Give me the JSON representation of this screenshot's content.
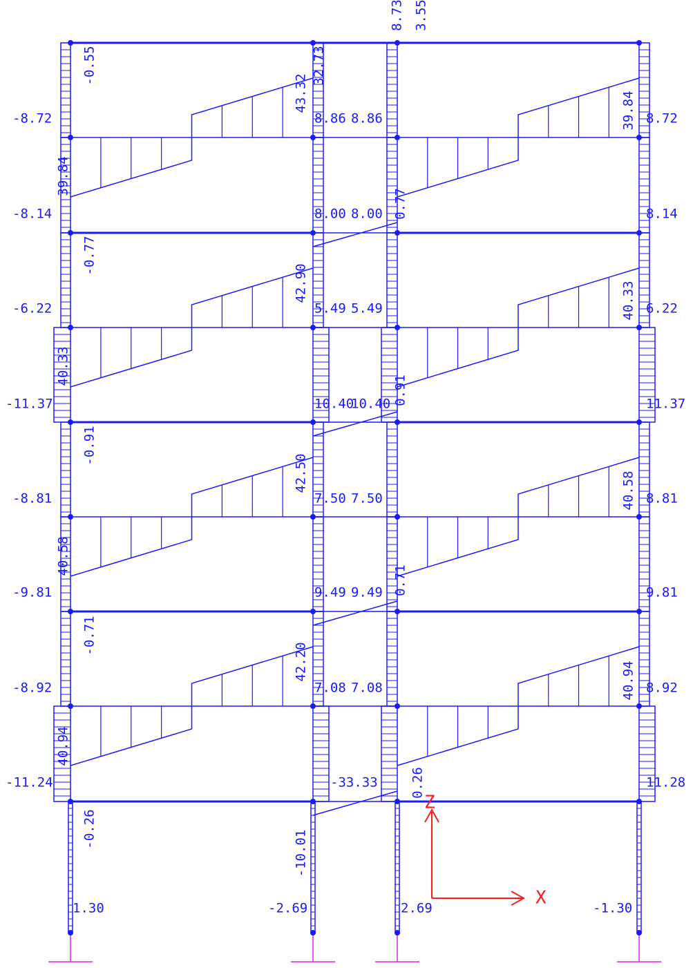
{
  "labels": [
    {
      "text": "8.73"
    },
    {
      "text": "3.55"
    },
    {
      "text": "-0.55"
    },
    {
      "text": "43.32"
    },
    {
      "text": "32.73"
    },
    {
      "text": "-8.72"
    },
    {
      "text": "8.86"
    },
    {
      "text": "8.86"
    },
    {
      "text": "39.84"
    },
    {
      "text": "8.72"
    },
    {
      "text": "39.84"
    },
    {
      "text": "-8.14"
    },
    {
      "text": "8.00"
    },
    {
      "text": "8.00"
    },
    {
      "text": "0.77"
    },
    {
      "text": "8.14"
    },
    {
      "text": "-0.77"
    },
    {
      "text": "42.90"
    },
    {
      "text": "-6.22"
    },
    {
      "text": "5.49"
    },
    {
      "text": "5.49"
    },
    {
      "text": "40.33"
    },
    {
      "text": "6.22"
    },
    {
      "text": "40.33"
    },
    {
      "text": "-11.37"
    },
    {
      "text": "10.40"
    },
    {
      "text": "10.40"
    },
    {
      "text": "0.91"
    },
    {
      "text": "11.37"
    },
    {
      "text": "-0.91"
    },
    {
      "text": "42.50"
    },
    {
      "text": "-8.81"
    },
    {
      "text": "7.50"
    },
    {
      "text": "7.50"
    },
    {
      "text": "40.58"
    },
    {
      "text": "8.81"
    },
    {
      "text": "40.58"
    },
    {
      "text": "-9.81"
    },
    {
      "text": "9.49"
    },
    {
      "text": "9.49"
    },
    {
      "text": "0.71"
    },
    {
      "text": "9.81"
    },
    {
      "text": "-0.71"
    },
    {
      "text": "42.20"
    },
    {
      "text": "-8.92"
    },
    {
      "text": "7.08"
    },
    {
      "text": "7.08"
    },
    {
      "text": "40.94"
    },
    {
      "text": "8.92"
    },
    {
      "text": "40.94"
    },
    {
      "text": "-11.24"
    },
    {
      "text": "-33.33"
    },
    {
      "text": "0.26"
    },
    {
      "text": "11.28"
    },
    {
      "text": "-0.26"
    },
    {
      "text": "-10.01"
    },
    {
      "text": "1.30"
    },
    {
      "text": "-2.69"
    },
    {
      "text": "2.69"
    },
    {
      "text": "-1.30"
    }
  ],
  "axes": {
    "x": "X",
    "z": "Z"
  }
}
